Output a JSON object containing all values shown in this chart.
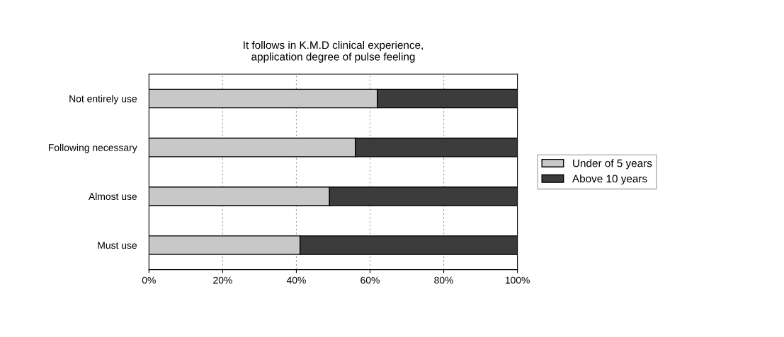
{
  "chart_data": {
    "type": "bar",
    "orientation": "horizontal",
    "stacked": true,
    "title": "It follows in K.M.D clinical experience,\napplication degree of pulse feeling",
    "categories": [
      "Not entirely use",
      "Following necessary",
      "Almost use",
      "Must use"
    ],
    "series": [
      {
        "name": "Under of 5 years",
        "color": "#c8c8c8",
        "values": [
          62,
          56,
          49,
          41
        ]
      },
      {
        "name": "Above 10 years",
        "color": "#3c3c3c",
        "values": [
          38,
          44,
          51,
          59
        ]
      }
    ],
    "xlim": [
      0,
      100
    ],
    "xticks": [
      {
        "value": 0,
        "label": "0%"
      },
      {
        "value": 20,
        "label": "20%"
      },
      {
        "value": 40,
        "label": "40%"
      },
      {
        "value": 60,
        "label": "60%"
      },
      {
        "value": 80,
        "label": "80%"
      },
      {
        "value": 100,
        "label": "100%"
      }
    ],
    "grid": "x",
    "legend": "right"
  }
}
